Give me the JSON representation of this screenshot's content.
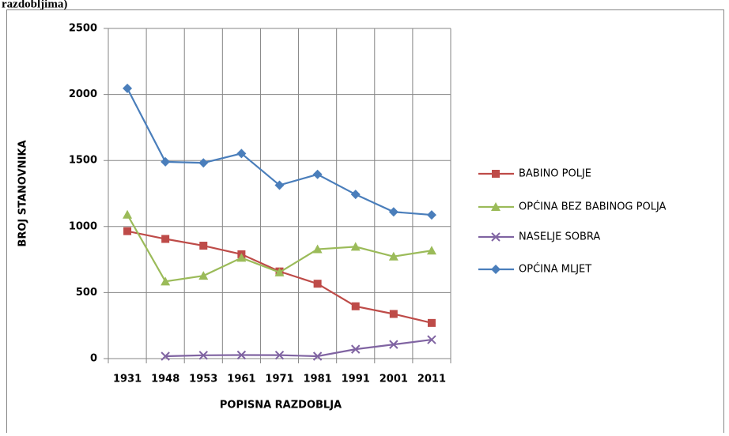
{
  "caption": "razdobljima)",
  "chart_data": {
    "type": "line",
    "x_label": "POPISNA RAZDOBLJA",
    "y_label": "BROJ STANOVNIKA",
    "categories": [
      "1931",
      "1948",
      "1953",
      "1961",
      "1971",
      "1981",
      "1991",
      "2001",
      "2011"
    ],
    "ylim": [
      0,
      2500
    ],
    "yticks": [
      0,
      500,
      1000,
      1500,
      2000,
      2500
    ],
    "grid": true,
    "legend": "right",
    "series": [
      {
        "name": "BABINO POLJE",
        "color": "#be4b48",
        "marker": "square",
        "values": [
          965,
          906,
          855,
          790,
          660,
          567,
          396,
          338,
          270
        ]
      },
      {
        "name": "OPĆINA BEZ BABINOG POLJA",
        "color": "#9bbb59",
        "marker": "triangle",
        "values": [
          1090,
          584,
          627,
          763,
          653,
          828,
          847,
          773,
          818
        ]
      },
      {
        "name": "NASELJE SOBRA",
        "color": "#8064a2",
        "marker": "x",
        "values": [
          null,
          18,
          25,
          27,
          26,
          18,
          71,
          107,
          143
        ]
      },
      {
        "name": "OPĆINA MLJET",
        "color": "#4a7ebb",
        "marker": "diamond",
        "values": [
          2046,
          1490,
          1482,
          1553,
          1313,
          1395,
          1243,
          1111,
          1088
        ]
      }
    ]
  }
}
